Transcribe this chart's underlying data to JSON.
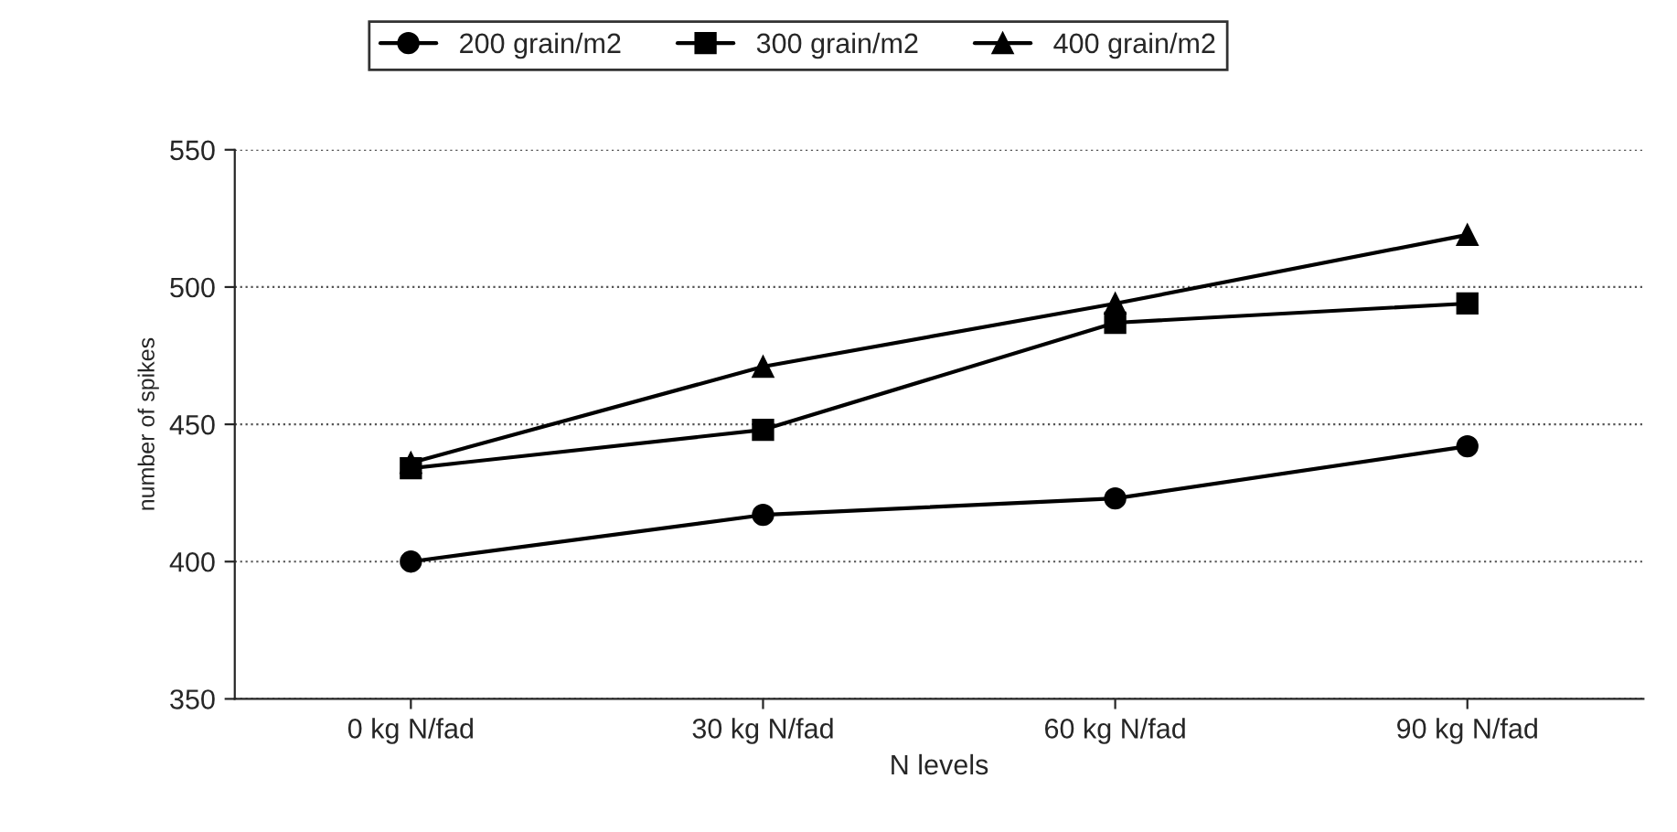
{
  "chart_data": {
    "type": "line",
    "xlabel": "N levels",
    "ylabel": "number of spikes",
    "categories": [
      "0 kg N/fad",
      "30 kg N/fad",
      "60 kg N/fad",
      "90 kg N/fad"
    ],
    "series": [
      {
        "name": "200 grain/m2",
        "color": "#000000",
        "marker": "circle",
        "values": [
          400,
          417,
          423,
          442
        ]
      },
      {
        "name": "300 grain/m2",
        "color": "#000000",
        "marker": "square",
        "values": [
          434,
          448,
          487,
          494
        ]
      },
      {
        "name": "400 grain/m2",
        "color": "#000000",
        "marker": "triangle",
        "values": [
          436,
          471,
          494,
          519
        ]
      }
    ],
    "ylim": [
      350,
      550
    ],
    "yticks": [
      350,
      400,
      450,
      500,
      550
    ],
    "grid": "y",
    "legend": "top",
    "line_style": "solid"
  }
}
